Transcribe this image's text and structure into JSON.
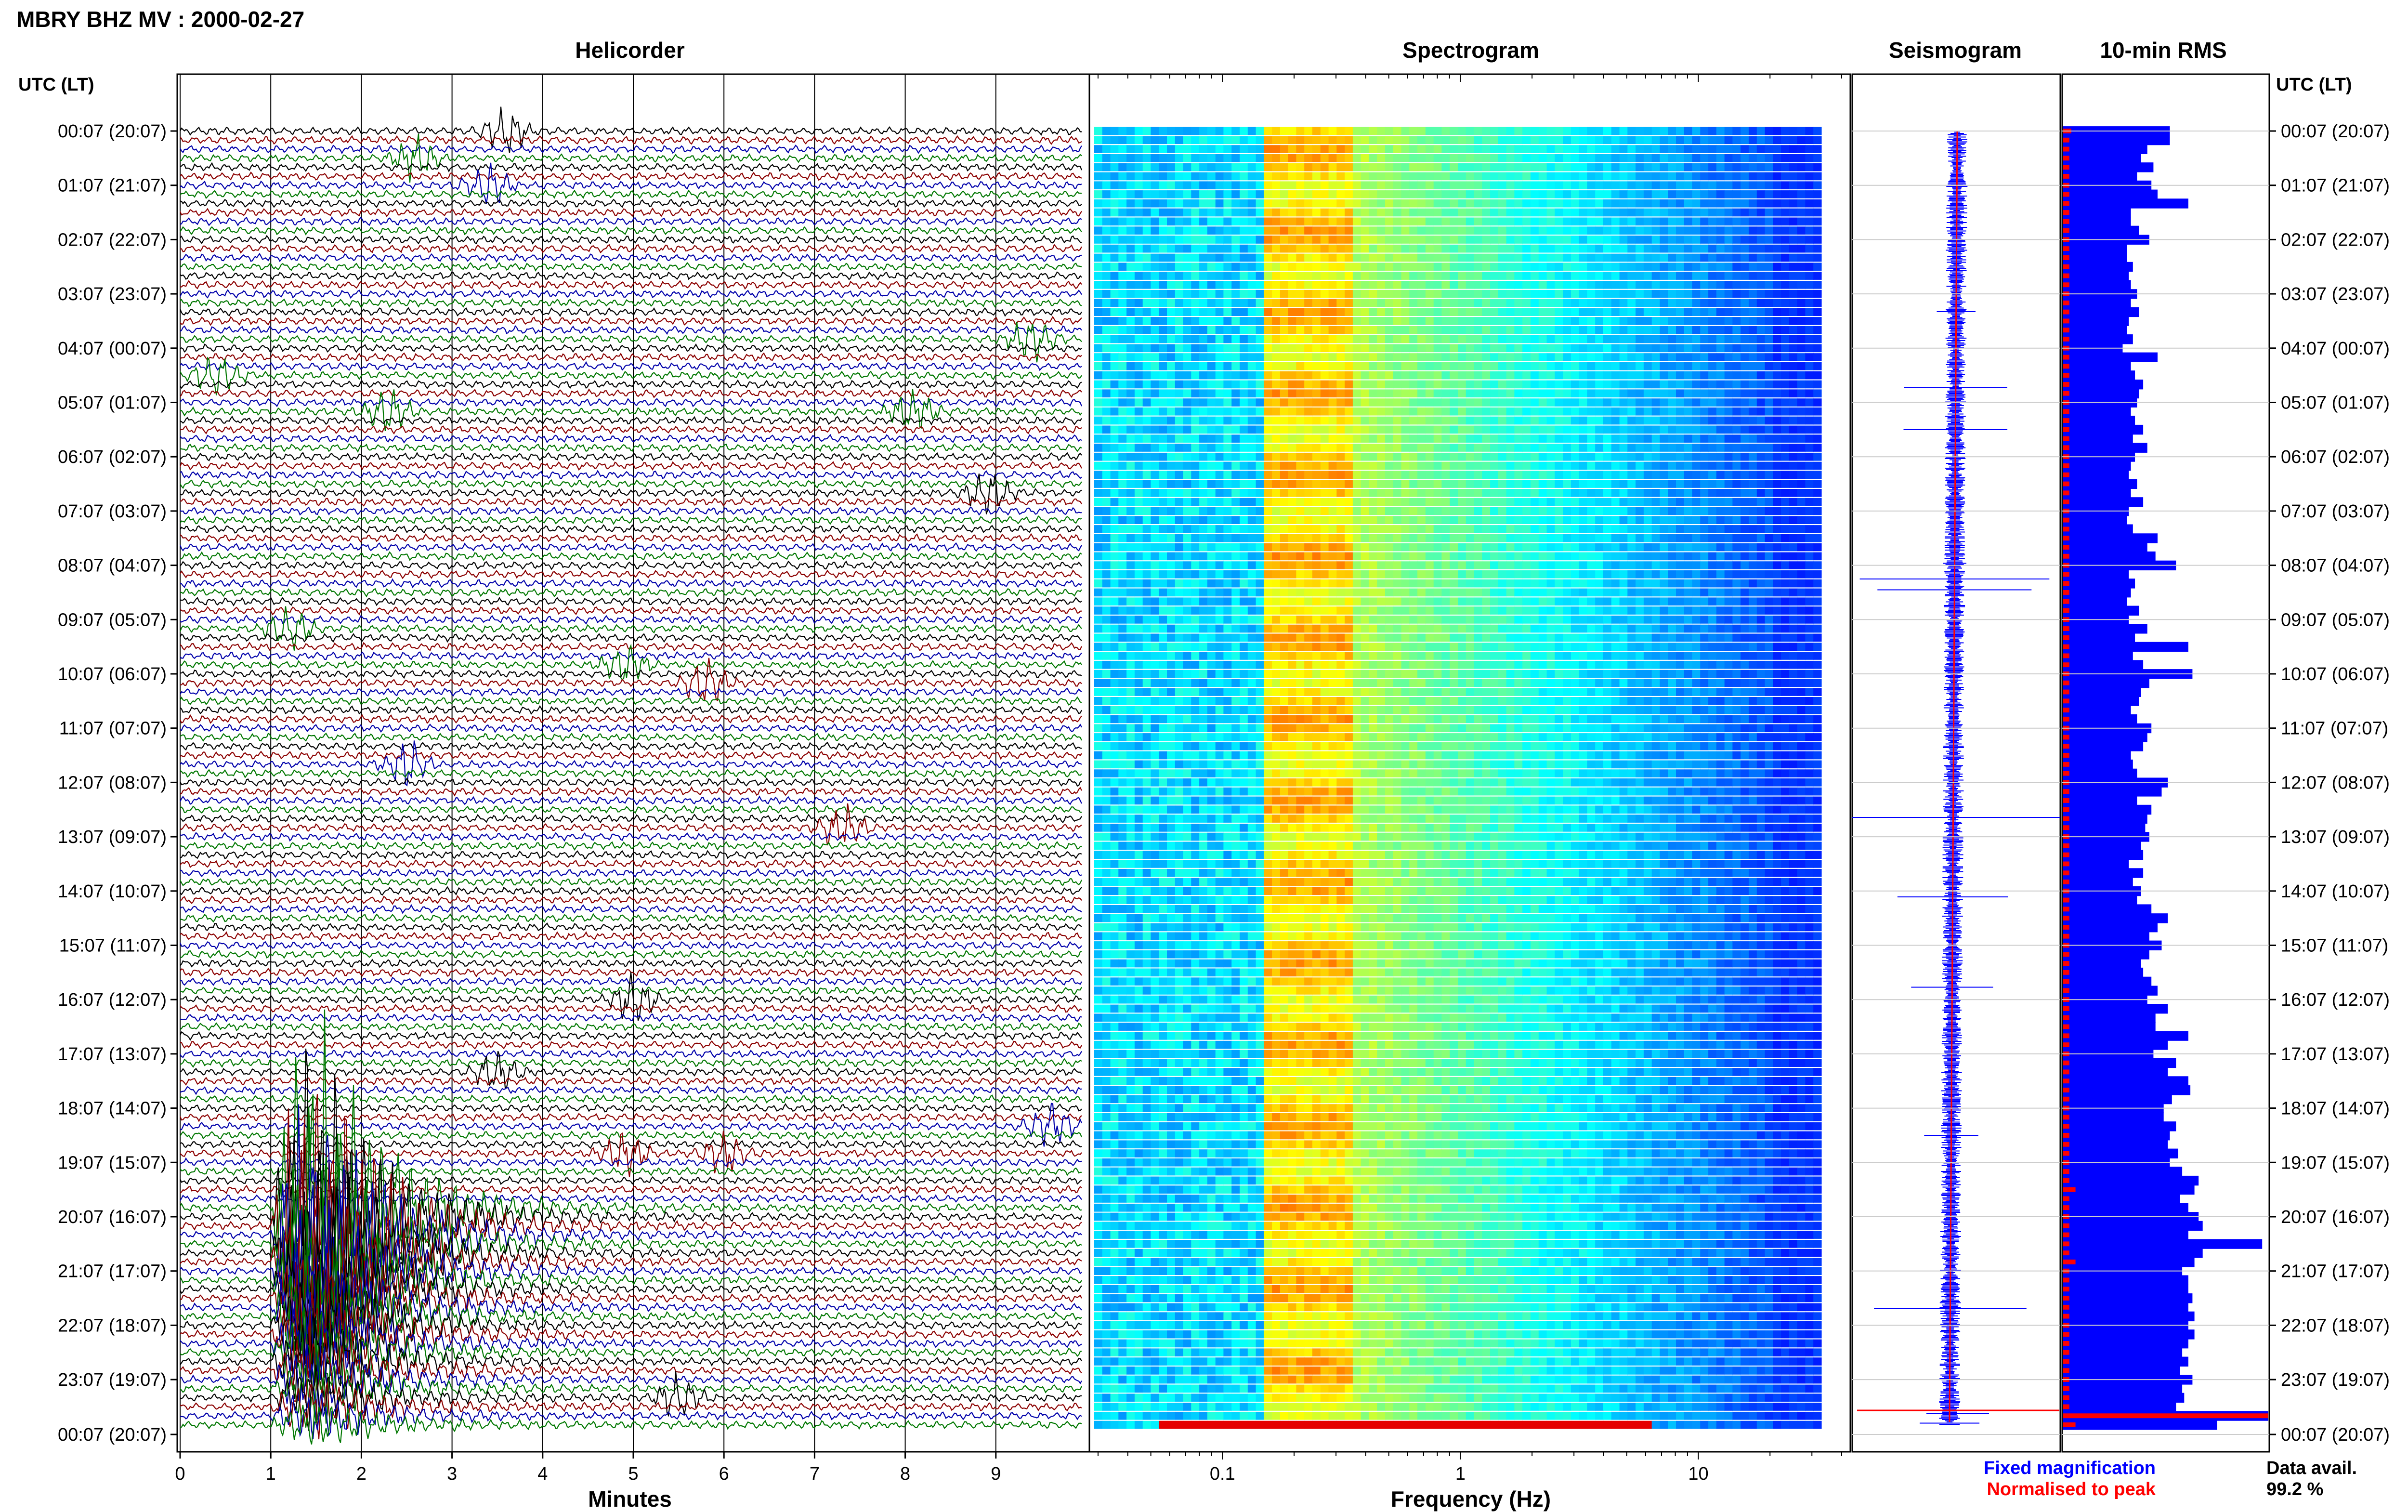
{
  "header": {
    "title": "MBRY BHZ MV : 2000-02-27"
  },
  "panels": {
    "helicorder": "Helicorder",
    "spectrogram": "Spectrogram",
    "seismogram": "Seismogram",
    "rms": "10-min RMS"
  },
  "axes": {
    "time_label": "UTC (LT)",
    "minutes_label": "Minutes",
    "frequency_label": "Frequency (Hz)"
  },
  "legend": {
    "fixed": "Fixed magnification",
    "normalised": "Normalised to peak",
    "fixed_color": "#0000ff",
    "normalised_color": "#ff0000"
  },
  "availability": {
    "label": "Data avail.",
    "value": "99.2 %"
  },
  "chart_data": [
    {
      "type": "line",
      "name": "helicorder",
      "x_ticks": [
        "0",
        "1",
        "2",
        "3",
        "4",
        "5",
        "6",
        "7",
        "8",
        "9"
      ],
      "xlim": [
        0,
        10
      ],
      "row_count": 144,
      "line_colors": [
        "#000000",
        "#8b0000",
        "#0000aa",
        "#007700"
      ],
      "y_tick_labels": [
        "00:07 (20:07)",
        "01:07 (21:07)",
        "02:07 (22:07)",
        "03:07 (23:07)",
        "04:07 (00:07)",
        "05:07 (01:07)",
        "06:07 (02:07)",
        "07:07 (03:07)",
        "08:07 (04:07)",
        "09:07 (05:07)",
        "10:07 (06:07)",
        "11:07 (07:07)",
        "12:07 (08:07)",
        "13:07 (09:07)",
        "14:07 (10:07)",
        "15:07 (11:07)",
        "16:07 (12:07)",
        "17:07 (13:07)",
        "18:07 (14:07)",
        "19:07 (15:07)",
        "20:07 (16:07)",
        "21:07 (17:07)",
        "22:07 (18:07)",
        "23:07 (19:07)",
        "00:07 (20:07)"
      ],
      "events": [
        {
          "row": 0,
          "minute": 3.6
        },
        {
          "row": 3,
          "minute": 2.6
        },
        {
          "row": 6,
          "minute": 3.4
        },
        {
          "row": 23,
          "minute": 9.4
        },
        {
          "row": 27,
          "minute": 0.4
        },
        {
          "row": 31,
          "minute": 2.3
        },
        {
          "row": 31,
          "minute": 8.1
        },
        {
          "row": 40,
          "minute": 8.9
        },
        {
          "row": 55,
          "minute": 1.2
        },
        {
          "row": 59,
          "minute": 4.9
        },
        {
          "row": 61,
          "minute": 5.8
        },
        {
          "row": 70,
          "minute": 2.5
        },
        {
          "row": 77,
          "minute": 7.3
        },
        {
          "row": 96,
          "minute": 5.0
        },
        {
          "row": 104,
          "minute": 3.5
        },
        {
          "row": 110,
          "minute": 9.6
        },
        {
          "row": 113,
          "minute": 4.9
        },
        {
          "row": 113,
          "minute": 6.0
        },
        {
          "row": 140,
          "minute": 5.5
        }
      ],
      "large_event": {
        "start_row": 119,
        "end_row": 144,
        "onset_minute": 1.0,
        "peak_minute": 1.5
      }
    },
    {
      "type": "heatmap",
      "name": "spectrogram",
      "x_ticks": [
        "0.1",
        "1",
        "10"
      ],
      "x_scale": "log",
      "xlim": [
        0.03,
        40
      ],
      "row_count": 144
    },
    {
      "type": "line",
      "name": "seismogram",
      "series": [
        {
          "name": "Fixed magnification",
          "color": "#0000ff"
        },
        {
          "name": "Normalised to peak",
          "color": "#ff0000"
        }
      ]
    },
    {
      "type": "bar",
      "name": "rms",
      "values": [
        0.52,
        0.52,
        0.41,
        0.38,
        0.44,
        0.36,
        0.43,
        0.46,
        0.61,
        0.33,
        0.33,
        0.37,
        0.42,
        0.31,
        0.31,
        0.34,
        0.32,
        0.33,
        0.36,
        0.33,
        0.37,
        0.32,
        0.31,
        0.34,
        0.29,
        0.46,
        0.33,
        0.35,
        0.39,
        0.37,
        0.36,
        0.33,
        0.35,
        0.39,
        0.34,
        0.41,
        0.35,
        0.33,
        0.32,
        0.36,
        0.33,
        0.39,
        0.32,
        0.31,
        0.34,
        0.46,
        0.41,
        0.45,
        0.55,
        0.32,
        0.35,
        0.33,
        0.31,
        0.37,
        0.32,
        0.41,
        0.35,
        0.61,
        0.34,
        0.39,
        0.63,
        0.42,
        0.38,
        0.37,
        0.33,
        0.36,
        0.43,
        0.41,
        0.39,
        0.33,
        0.34,
        0.36,
        0.51,
        0.48,
        0.36,
        0.43,
        0.41,
        0.4,
        0.42,
        0.38,
        0.39,
        0.32,
        0.39,
        0.34,
        0.38,
        0.36,
        0.43,
        0.51,
        0.46,
        0.42,
        0.48,
        0.42,
        0.38,
        0.39,
        0.43,
        0.46,
        0.41,
        0.51,
        0.45,
        0.45,
        0.61,
        0.51,
        0.44,
        0.55,
        0.51,
        0.61,
        0.62,
        0.53,
        0.49,
        0.49,
        0.55,
        0.52,
        0.51,
        0.56,
        0.52,
        0.58,
        0.66,
        0.64,
        0.57,
        0.61,
        0.66,
        0.68,
        0.61,
        0.97,
        0.68,
        0.64,
        0.58,
        0.61,
        0.61,
        0.63,
        0.61,
        0.64,
        0.61,
        0.64,
        0.61,
        0.58,
        0.61,
        0.57,
        0.63,
        0.58,
        0.59,
        0.55,
        1.0,
        0.75
      ],
      "peaks": [
        0.04,
        0.03,
        0.03,
        0.03,
        0.03,
        0.03,
        0.03,
        0.03,
        0.03,
        0.03,
        0.03,
        0.03,
        0.03,
        0.03,
        0.03,
        0.03,
        0.03,
        0.03,
        0.03,
        0.03,
        0.03,
        0.03,
        0.03,
        0.03,
        0.03,
        0.03,
        0.03,
        0.03,
        0.03,
        0.03,
        0.03,
        0.03,
        0.03,
        0.03,
        0.03,
        0.03,
        0.03,
        0.03,
        0.03,
        0.03,
        0.03,
        0.03,
        0.03,
        0.03,
        0.03,
        0.03,
        0.03,
        0.03,
        0.03,
        0.03,
        0.03,
        0.03,
        0.03,
        0.03,
        0.03,
        0.03,
        0.03,
        0.03,
        0.03,
        0.03,
        0.03,
        0.03,
        0.03,
        0.03,
        0.03,
        0.03,
        0.03,
        0.03,
        0.03,
        0.03,
        0.03,
        0.03,
        0.03,
        0.03,
        0.03,
        0.03,
        0.03,
        0.03,
        0.03,
        0.03,
        0.03,
        0.03,
        0.03,
        0.03,
        0.03,
        0.03,
        0.03,
        0.03,
        0.03,
        0.03,
        0.03,
        0.03,
        0.03,
        0.03,
        0.03,
        0.03,
        0.03,
        0.03,
        0.03,
        0.03,
        0.03,
        0.03,
        0.03,
        0.03,
        0.03,
        0.03,
        0.03,
        0.03,
        0.03,
        0.03,
        0.03,
        0.03,
        0.03,
        0.03,
        0.03,
        0.03,
        0.03,
        0.06,
        0.03,
        0.03,
        0.03,
        0.03,
        0.03,
        0.03,
        0.03,
        0.06,
        0.03,
        0.03,
        0.03,
        0.03,
        0.03,
        0.03,
        0.03,
        0.03,
        0.03,
        0.03,
        0.03,
        0.03,
        0.03,
        0.03,
        0.03,
        0.03,
        1.0,
        0.06
      ]
    }
  ]
}
